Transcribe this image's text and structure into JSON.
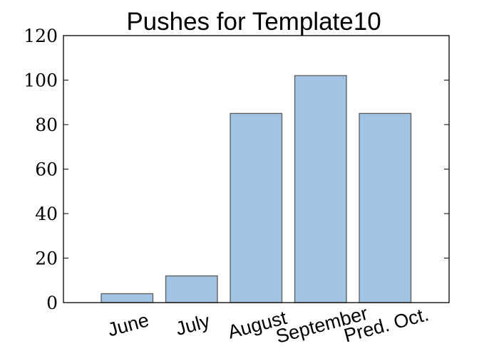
{
  "chart_data": {
    "type": "bar",
    "title": "Pushes for Template10",
    "xlabel": "",
    "ylabel": "",
    "categories": [
      "June",
      "July",
      "August",
      "September",
      "Pred. Oct."
    ],
    "values": [
      4,
      12,
      85,
      102,
      85
    ],
    "ylim": [
      0,
      120
    ],
    "yticks": [
      0,
      20,
      40,
      60,
      80,
      100,
      120
    ],
    "grid": false,
    "legend": "none",
    "bar_color": "#a1c3e4",
    "bar_edge_color": "#5a5a5a",
    "axis_color": "#000000"
  }
}
